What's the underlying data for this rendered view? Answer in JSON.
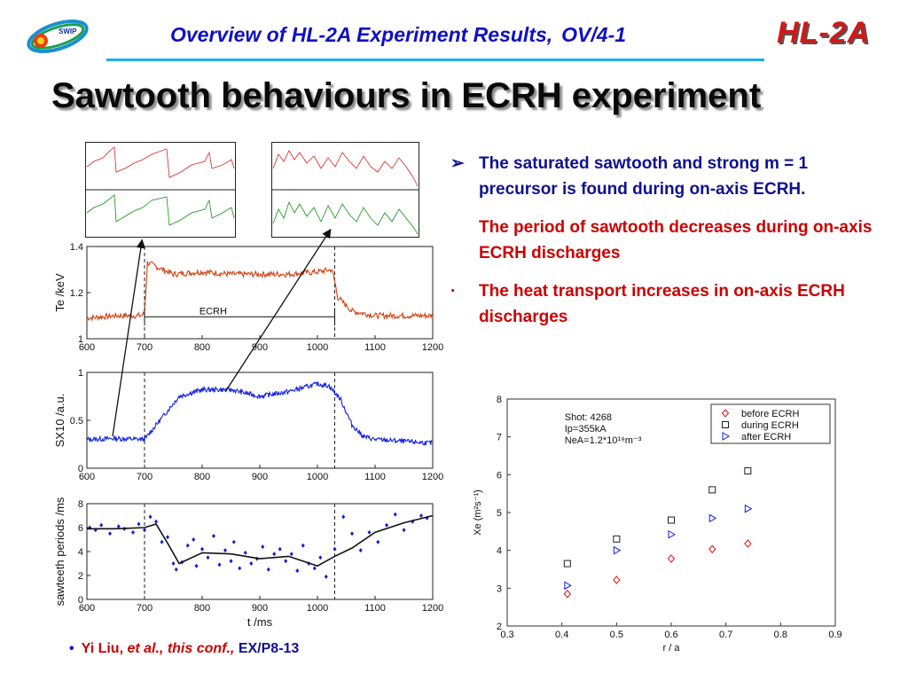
{
  "header": {
    "title": "Overview of HL-2A Experiment Results,",
    "code": "OV/4-1",
    "brand": "HL-2A",
    "logo_text": "SWIP",
    "colors": {
      "title": "#1010c0",
      "brand": "#d01818",
      "rule": "#1ab0e8"
    }
  },
  "slide_title": "Sawtooth behaviours in ECRH experiment",
  "bullets": [
    {
      "text": "The saturated sawtooth and strong m = 1 precursor is found during on-axis ECRH.",
      "marker": "➢",
      "color": "#101090"
    },
    {
      "text": "The period of sawtooth decreases during on-axis ECRH discharges",
      "marker": "",
      "color": "#cc0000"
    },
    {
      "text": "The heat transport increases in on-axis ECRH discharges",
      "marker": "·",
      "color": "#cc0000"
    }
  ],
  "citation": {
    "bullet": "•",
    "author": "Yi Liu,",
    "etal": "et al., this conf.,",
    "ref": "EX/P8-13"
  },
  "chart_data": [
    {
      "type": "line",
      "ylabel": "Te /keV",
      "xlim": [
        600,
        1200
      ],
      "ylim": [
        1,
        1.4
      ],
      "xticks": [
        600,
        700,
        800,
        900,
        1000,
        1100,
        1200
      ],
      "yticks": [
        1,
        1.2,
        1.4
      ],
      "annotation": "ECRH",
      "ecrh_window": [
        700,
        1030
      ],
      "color": "#d04010",
      "series": [
        {
          "x": [
            600,
            650,
            695,
            700,
            705,
            750,
            800,
            850,
            900,
            950,
            1000,
            1025,
            1030,
            1035,
            1060,
            1100,
            1150,
            1200
          ],
          "values": [
            1.09,
            1.1,
            1.1,
            1.11,
            1.33,
            1.28,
            1.29,
            1.28,
            1.28,
            1.28,
            1.29,
            1.3,
            1.25,
            1.18,
            1.12,
            1.1,
            1.1,
            1.1
          ]
        }
      ]
    },
    {
      "type": "line",
      "ylabel": "SX10 /a.u.",
      "xlim": [
        600,
        1200
      ],
      "ylim": [
        0,
        1
      ],
      "xticks": [
        600,
        700,
        800,
        900,
        1000,
        1100,
        1200
      ],
      "yticks": [
        0,
        0.5,
        1
      ],
      "color": "#1020e0",
      "series": [
        {
          "x": [
            600,
            650,
            700,
            720,
            760,
            800,
            850,
            900,
            950,
            1000,
            1020,
            1040,
            1060,
            1080,
            1100,
            1150,
            1200
          ],
          "values": [
            0.3,
            0.31,
            0.3,
            0.45,
            0.75,
            0.82,
            0.82,
            0.75,
            0.8,
            0.88,
            0.86,
            0.72,
            0.45,
            0.33,
            0.3,
            0.28,
            0.26
          ]
        }
      ]
    },
    {
      "type": "scatter",
      "ylabel": "sawteeth periods /ms",
      "xlabel": "t /ms",
      "xlim": [
        600,
        1200
      ],
      "ylim": [
        0,
        8
      ],
      "xticks": [
        600,
        700,
        800,
        900,
        1000,
        1100,
        1200
      ],
      "yticks": [
        0,
        2,
        4,
        6,
        8
      ],
      "color": "#1020d0",
      "points": {
        "x": [
          605,
          615,
          625,
          640,
          655,
          665,
          680,
          690,
          700,
          710,
          720,
          730,
          740,
          750,
          755,
          765,
          775,
          785,
          790,
          800,
          810,
          820,
          830,
          840,
          850,
          855,
          865,
          875,
          885,
          895,
          905,
          915,
          925,
          935,
          945,
          955,
          965,
          975,
          985,
          995,
          1005,
          1015,
          1030,
          1045,
          1060,
          1075,
          1090,
          1105,
          1120,
          1135,
          1150,
          1165,
          1180,
          1190
        ],
        "y": [
          6.0,
          5.8,
          6.2,
          5.5,
          6.1,
          5.9,
          5.6,
          6.3,
          5.8,
          6.9,
          6.5,
          4.8,
          5.2,
          3.0,
          2.5,
          3.1,
          4.5,
          5.0,
          2.8,
          4.2,
          3.5,
          5.3,
          2.9,
          4.1,
          3.2,
          4.8,
          2.6,
          3.9,
          3.0,
          3.4,
          4.4,
          2.5,
          3.8,
          4.2,
          3.2,
          3.8,
          2.4,
          4.5,
          3.0,
          2.6,
          3.5,
          1.9,
          4.2,
          6.9,
          5.5,
          4.1,
          5.6,
          4.8,
          6.2,
          7.1,
          5.8,
          6.5,
          7.0,
          6.8
        ]
      },
      "trend": {
        "x": [
          600,
          650,
          700,
          720,
          740,
          760,
          800,
          850,
          900,
          950,
          1000,
          1030,
          1060,
          1100,
          1150,
          1200
        ],
        "values": [
          5.9,
          5.9,
          6.0,
          6.3,
          4.7,
          3.0,
          3.9,
          3.8,
          3.4,
          3.6,
          2.8,
          3.6,
          4.3,
          5.6,
          6.4,
          7.0
        ]
      }
    },
    {
      "type": "scatter",
      "xlabel": "r / a",
      "ylabel": "Χe (m²s⁻¹)",
      "xlim": [
        0.3,
        0.9
      ],
      "ylim": [
        2,
        8
      ],
      "xticks": [
        0.3,
        0.4,
        0.5,
        0.6,
        0.7,
        0.8,
        0.9
      ],
      "yticks": [
        2,
        3,
        4,
        5,
        6,
        7,
        8
      ],
      "annotations": [
        "Shot: 4268",
        "Ip=355kA",
        "NeA=1.2*10¹⁹m⁻³"
      ],
      "legend": "top-right",
      "series": [
        {
          "name": "before ECRH",
          "marker": "diamond",
          "color": "#e01010",
          "x": [
            0.41,
            0.5,
            0.6,
            0.675,
            0.74
          ],
          "values": [
            2.85,
            3.22,
            3.78,
            4.03,
            4.18
          ]
        },
        {
          "name": "during ECRH",
          "marker": "square",
          "color": "#202020",
          "x": [
            0.41,
            0.5,
            0.6,
            0.675,
            0.74
          ],
          "values": [
            3.65,
            4.3,
            4.8,
            5.6,
            6.1
          ]
        },
        {
          "name": "after ECRH",
          "marker": "triangle",
          "color": "#1020e0",
          "x": [
            0.41,
            0.5,
            0.6,
            0.675,
            0.74
          ],
          "values": [
            3.07,
            4.0,
            4.42,
            4.85,
            5.1
          ]
        }
      ]
    }
  ]
}
